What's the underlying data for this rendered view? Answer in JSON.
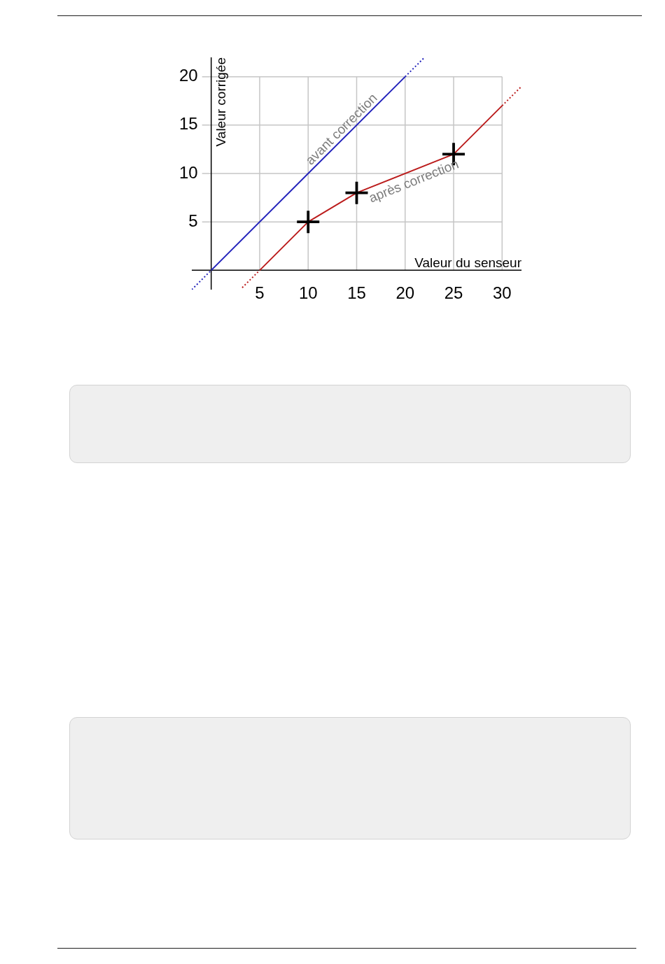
{
  "chart_data": {
    "type": "line",
    "xlabel": "Valeur du senseur",
    "ylabel": "Valeur corrigée",
    "xlim": [
      -2,
      32
    ],
    "ylim": [
      -2,
      22
    ],
    "xticks": [
      5,
      10,
      15,
      20,
      25,
      30
    ],
    "yticks": [
      5,
      10,
      15,
      20
    ],
    "grid": true,
    "series": [
      {
        "name": "avant correction",
        "color": "#2222bb",
        "x": [
          0,
          20
        ],
        "values": [
          0,
          20
        ],
        "line_style": "solid"
      },
      {
        "color": "#2222bb",
        "x": [
          -2,
          0
        ],
        "values": [
          -2,
          0
        ],
        "line_style": "dotted"
      },
      {
        "color": "#2222bb",
        "x": [
          20,
          22
        ],
        "values": [
          20,
          22
        ],
        "line_style": "dotted"
      },
      {
        "name": "après correction",
        "color": "#bb1c1c",
        "x": [
          5,
          10,
          15,
          25,
          30
        ],
        "values": [
          0,
          5,
          8,
          12,
          17
        ],
        "line_style": "solid"
      },
      {
        "color": "#bb1c1c",
        "x": [
          3.2,
          5
        ],
        "values": [
          -1.8,
          0
        ],
        "line_style": "dotted"
      },
      {
        "color": "#bb1c1c",
        "x": [
          30,
          32
        ],
        "values": [
          17,
          19
        ],
        "line_style": "dotted"
      },
      {
        "type": "scatter",
        "color": "#000000",
        "x": [
          10,
          15,
          25
        ],
        "values": [
          5,
          8,
          12
        ],
        "marker": "cross"
      }
    ]
  }
}
